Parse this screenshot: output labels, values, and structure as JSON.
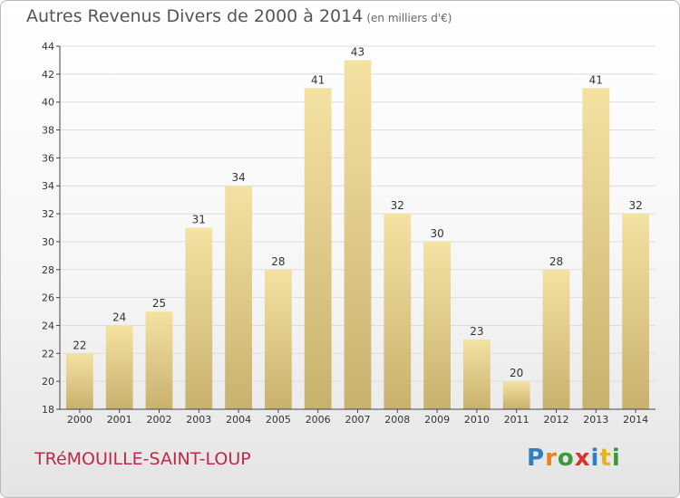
{
  "header": {
    "title": "Autres Revenus Divers de 2000 à 2014",
    "subtitle": "(en milliers d'€)"
  },
  "footer": {
    "commune": "TRéMOUILLE-SAINT-LOUP",
    "logo": "Proxiti",
    "logo_letters": [
      "P",
      "r",
      "o",
      "x",
      "i",
      "t",
      "i"
    ],
    "logo_colors": [
      "#2f7fc1",
      "#e8821e",
      "#3a9a3a",
      "#d9342b",
      "#2f7fc1",
      "#e8b41e",
      "#3a9a3a"
    ]
  },
  "colors": {
    "bar_top": "#f4e2a2",
    "bar_bottom": "#c8b16d",
    "grid": "#dddddd",
    "axis": "#444444"
  },
  "chart_data": {
    "type": "bar",
    "categories": [
      "2000",
      "2001",
      "2002",
      "2003",
      "2004",
      "2005",
      "2006",
      "2007",
      "2008",
      "2009",
      "2010",
      "2011",
      "2012",
      "2013",
      "2014"
    ],
    "values": [
      22,
      24,
      25,
      31,
      34,
      28,
      41,
      43,
      32,
      30,
      23,
      20,
      28,
      41,
      32
    ],
    "ylim": [
      18,
      44
    ],
    "yticks": [
      18,
      20,
      22,
      24,
      26,
      28,
      30,
      32,
      34,
      36,
      38,
      40,
      42,
      44
    ],
    "grid": true,
    "legend": "none"
  }
}
